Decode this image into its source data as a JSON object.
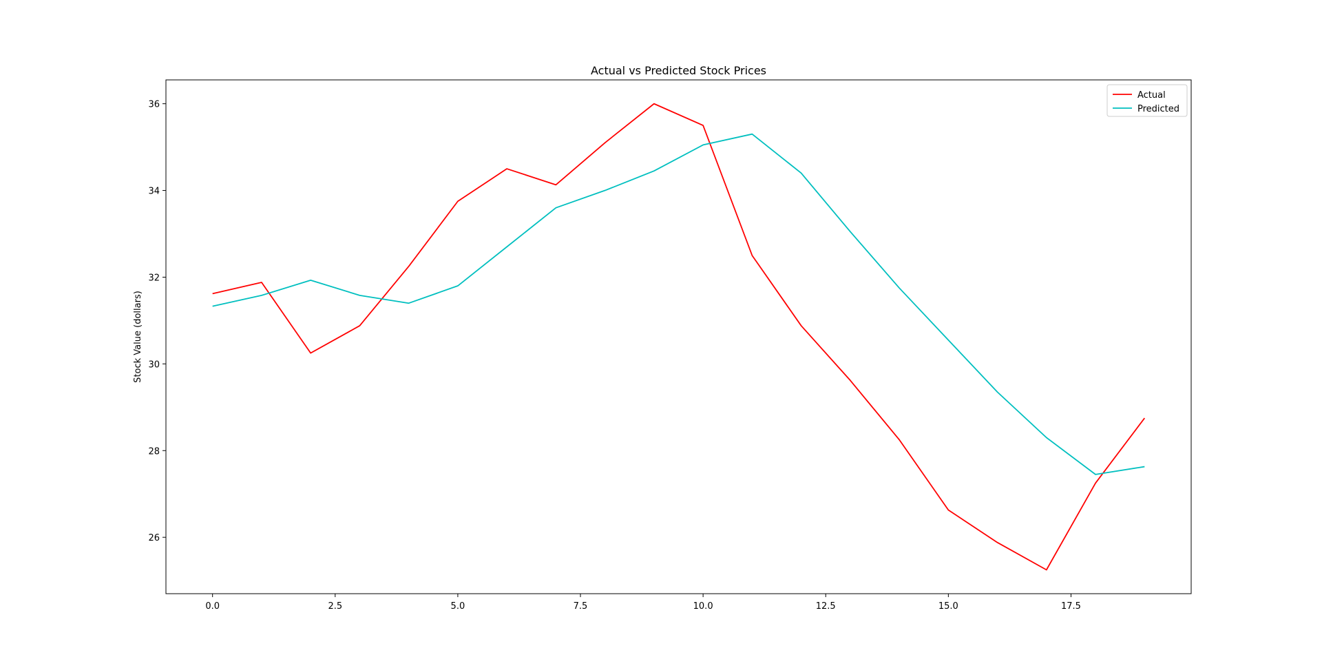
{
  "chart_data": {
    "type": "line",
    "title": "Actual vs Predicted Stock Prices",
    "xlabel": "",
    "ylabel": "Stock Value (dollars)",
    "xlim": [
      -0.95,
      19.95
    ],
    "ylim": [
      24.7,
      36.55
    ],
    "xticks": [
      0,
      2.5,
      5,
      7.5,
      10,
      12.5,
      15,
      17.5
    ],
    "xtick_labels": [
      "0.0",
      "2.5",
      "5.0",
      "7.5",
      "10.0",
      "12.5",
      "15.0",
      "17.5"
    ],
    "yticks": [
      26,
      28,
      30,
      32,
      34,
      36
    ],
    "ytick_labels": [
      "26",
      "28",
      "30",
      "32",
      "34",
      "36"
    ],
    "grid": false,
    "legend_position": "top-right",
    "x": [
      0,
      1,
      2,
      3,
      4,
      5,
      6,
      7,
      8,
      9,
      10,
      11,
      12,
      13,
      14,
      15,
      16,
      17,
      18,
      19
    ],
    "series": [
      {
        "name": "Actual",
        "color": "#ff0000",
        "values": [
          31.62,
          31.88,
          30.25,
          30.88,
          32.25,
          33.75,
          34.5,
          34.13,
          35.1,
          36.0,
          35.5,
          32.5,
          30.88,
          29.62,
          28.25,
          26.63,
          25.88,
          25.25,
          27.25,
          28.75
        ]
      },
      {
        "name": "Predicted",
        "color": "#00bfbf",
        "values": [
          31.33,
          31.58,
          31.93,
          31.58,
          31.4,
          31.8,
          32.7,
          33.6,
          34.0,
          34.45,
          35.05,
          35.3,
          34.4,
          33.05,
          31.75,
          30.55,
          29.35,
          28.3,
          27.45,
          27.63
        ]
      }
    ]
  }
}
